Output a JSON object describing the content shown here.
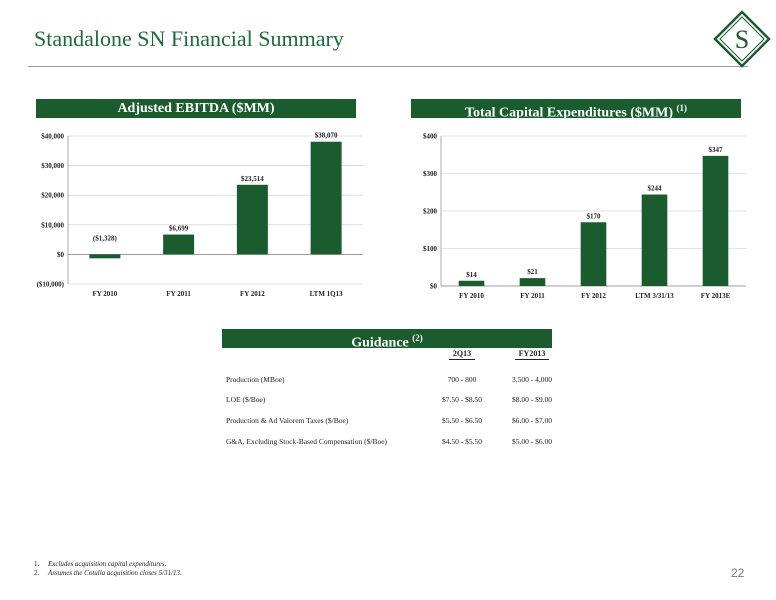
{
  "page": {
    "title": "Standalone SN Financial Summary",
    "page_number": "22",
    "logo_letter": "S"
  },
  "colors": {
    "accent": "#1a5c2e",
    "title": "#1f6a3b"
  },
  "ebitda": {
    "banner": "Adjusted EBITDA ($MM)",
    "chart_data": {
      "type": "bar",
      "categories": [
        "FY 2010",
        "FY 2011",
        "FY 2012",
        "LTM 1Q13"
      ],
      "values": [
        -1328,
        6699,
        23514,
        38070
      ],
      "data_labels": [
        "($1,328)",
        "$6,699",
        "$23,514",
        "$38,070"
      ],
      "ylim": [
        -10000,
        40000
      ],
      "yticks": [
        40000,
        30000,
        20000,
        10000,
        0,
        -10000
      ],
      "ytick_labels": [
        "$40,000",
        "$30,000",
        "$20,000",
        "$10,000",
        "$0",
        "($10,000)"
      ],
      "grid": true
    }
  },
  "capex": {
    "banner": "Total Capital Expenditures ($MM)",
    "banner_note": "(1)",
    "chart_data": {
      "type": "bar",
      "categories": [
        "FY 2010",
        "FY 2011",
        "FY 2012",
        "LTM 3/31/13",
        "FY 2013E"
      ],
      "values": [
        14,
        21,
        170,
        244,
        347
      ],
      "data_labels": [
        "$14",
        "$21",
        "$170",
        "$244",
        "$347"
      ],
      "ylim": [
        0,
        400
      ],
      "yticks": [
        400,
        300,
        200,
        100,
        0
      ],
      "ytick_labels": [
        "$400",
        "$300",
        "$200",
        "$100",
        "$0"
      ],
      "grid": true
    }
  },
  "guidance": {
    "banner": "Guidance",
    "banner_note": "(2)",
    "columns": [
      "2Q13",
      "FY2013"
    ],
    "rows": [
      {
        "label": "Production (MBoe)",
        "q": "700 - 800",
        "fy": "3,500 - 4,000"
      },
      {
        "label": "LOE ($/Boe)",
        "q": "$7.50 - $8.50",
        "fy": "$8.00 - $9.00"
      },
      {
        "label": "Production & Ad Valorem Taxes ($/Boe)",
        "q": "$5.50 - $6.50",
        "fy": "$6.00 - $7.00"
      },
      {
        "label": "G&A, Excluding Stock-Based Compensation ($/Boe)",
        "q": "$4.50 - $5.50",
        "fy": "$5.00 - $6.00"
      }
    ]
  },
  "footnotes": [
    {
      "num": "1.",
      "text": "Excludes acquisition capital expenditures."
    },
    {
      "num": "2.",
      "text": "Assumes the Cotulla acquisition closes 5/31/13."
    }
  ]
}
